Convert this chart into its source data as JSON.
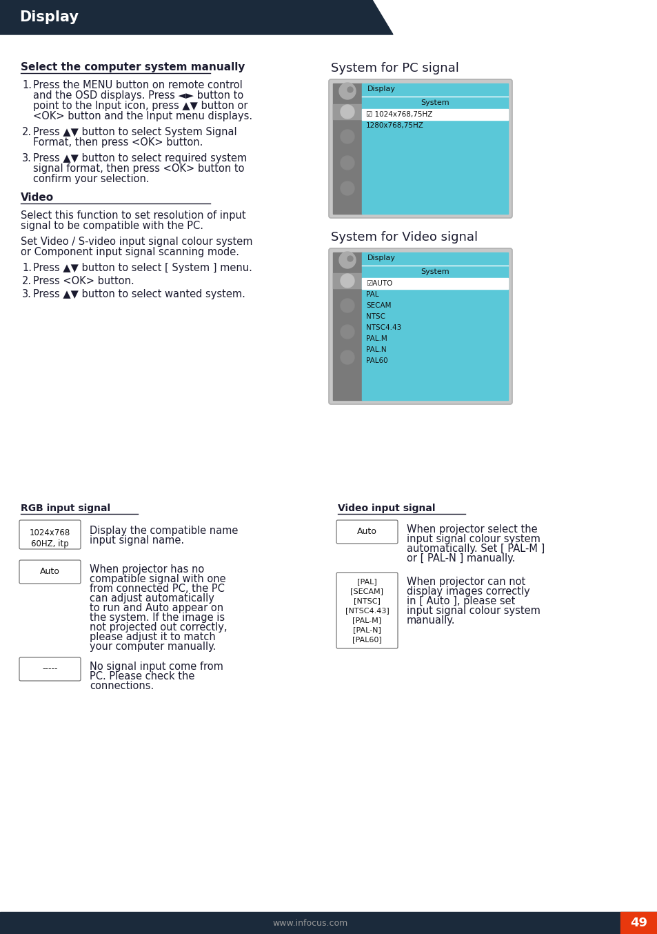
{
  "page_title": "Display",
  "header_bg": "#1b2a3b",
  "header_text_color": "#ffffff",
  "bg_color": "#ffffff",
  "body_text_color": "#1a1a2e",
  "footer_bg": "#1b2a3b",
  "footer_text": "www.infocus.com",
  "footer_page": "49",
  "footer_accent": "#e8380d",
  "section1_title": "Select the computer system manually",
  "section1_items": [
    "Press the MENU button on remote control\nand the OSD displays. Press ◄► button to\npoint to the Input icon, press ▲▼ button or\n<OK> button and the Input menu displays.",
    "Press ▲▼ button to select System Signal\nFormat, then press <OK> button.",
    "Press ▲▼ button to select required system\nsignal format, then press <OK> button to\nconfirm your selection."
  ],
  "section2_title": "Video",
  "section2_para1": "Select this function to set resolution of input\nsignal to be compatible with the PC.",
  "section2_para2": "Set Video / S-video input signal colour system\nor Component input signal scanning mode.",
  "section2_items": [
    "Press ▲▼ button to select [ System ] menu.",
    "Press <OK> button.",
    "Press ▲▼ button to select wanted system."
  ],
  "pc_signal_title": "System for PC signal",
  "pc_signal_display_label": "Display",
  "pc_signal_system_label": "System",
  "pc_signal_items": [
    "☑ 1024x768,75HZ",
    "1280x768,75HZ"
  ],
  "video_signal_title": "System for Video signal",
  "video_signal_display_label": "Display",
  "video_signal_system_label": "System",
  "video_signal_items": [
    "☑AUTO",
    "PAL",
    "SECAM",
    "NTSC",
    "NTSC4.43",
    "PAL.M",
    "PAL.N",
    "PAL60"
  ],
  "rgb_title": "RGB input signal",
  "rgb_box1_text": "1024x768\n60HZ, itp",
  "rgb_box1_desc": "Display the compatible name\ninput signal name.",
  "rgb_box2_text": "Auto",
  "rgb_box2_desc": "When projector has no\ncompatible signal with one\nfrom connected PC, the PC\ncan adjust automatically\nto run and Auto appear on\nthe system. If the image is\nnot projected out correctly,\nplease adjust it to match\nyour computer manually.",
  "rgb_box3_text": "-----",
  "rgb_box3_desc": "No signal input come from\nPC. Please check the\nconnections.",
  "video_input_title": "Video input signal",
  "video_input_box1_text": "Auto",
  "video_input_box1_desc": "When projector select the\ninput signal colour system\nautomatically. Set [ PAL-M ]\nor [ PAL-N ] manually.",
  "video_input_box2_text": "[PAL]\n[SECAM]\n[NTSC]\n[NTSC4.43]\n[PAL-M]\n[PAL-N]\n[PAL60]",
  "video_input_box2_desc": "When projector can not\ndisplay images correctly\nin [ Auto ], please set\ninput signal colour system\nmanually.",
  "menu_bg": "#5ac8d8",
  "menu_sidebar_bg": "#888888",
  "menu_item_selected_bg": "#ffffff"
}
